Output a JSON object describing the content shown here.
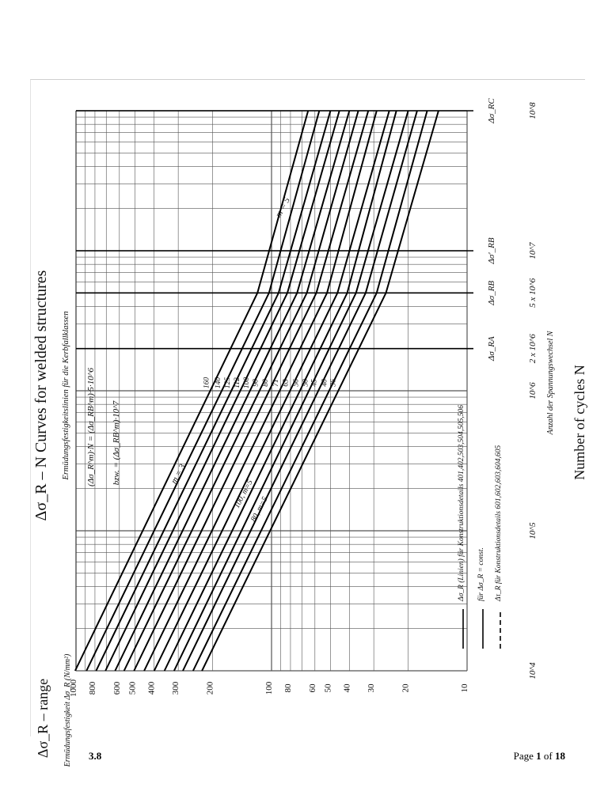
{
  "document": {
    "section": "3.8",
    "page_label": "Page",
    "page_current": "1",
    "page_of": "of",
    "page_total": "18"
  },
  "chart_data": {
    "type": "line",
    "orientation": "rotated 90° clockwise (log-log S-N diagram)",
    "scale": "log-log",
    "grid": true,
    "title": "Δσ_R – N Curves for welded structures",
    "subtitle": "Ermüdungsfestigkeitslinien für die Kerbfallklassen",
    "xlabel": "Number of cycles N",
    "xlabel_de": "Anzahl der Spannungswechsel N",
    "ylabel": "Δσ_R – range",
    "ylabel_de": "Ermüdungsfestigkeit Δσ_R (N/mm²)",
    "xlim": [
      10000,
      100000000
    ],
    "ylim": [
      10,
      1000
    ],
    "x_ticks": [
      {
        "v": 10000,
        "label": "10^4"
      },
      {
        "v": 100000,
        "label": "10^5"
      },
      {
        "v": 1000000,
        "label": "10^6"
      },
      {
        "v": 2000000,
        "label": "2 x 10^6"
      },
      {
        "v": 5000000,
        "label": "5 x 10^6"
      },
      {
        "v": 10000000,
        "label": "10^7"
      },
      {
        "v": 100000000,
        "label": "10^8"
      }
    ],
    "y_ticks": [
      1000,
      800,
      600,
      500,
      400,
      300,
      200,
      100,
      80,
      60,
      50,
      40,
      30,
      20,
      10
    ],
    "reference_points": [
      {
        "v": 2000000,
        "label": "Δσ_RA"
      },
      {
        "v": 5000000,
        "label": "Δσ_RB"
      },
      {
        "v": 10000000,
        "label": "Δσ'_RB"
      },
      {
        "v": 100000000,
        "label": "Δσ_RC"
      }
    ],
    "equations": [
      "(Δσ_R^m)·N = (Δσ_RB^m)·5·10^6",
      "bzw. = (Δσ_RB^m)·10^7"
    ],
    "slope_labels": [
      "m = 3",
      "m = 5",
      "100, m=5",
      "80, m=5"
    ],
    "detail_categories": [
      "160",
      "140",
      "125",
      "112",
      "100",
      "90",
      "80",
      "71",
      "63",
      "56",
      "50",
      "45",
      "40",
      "36"
    ],
    "series": [
      {
        "category": 160,
        "start_sigma_at_1e4": 1010,
        "knee_sigma_5e6": 118,
        "end_sigma_1e8": 65
      },
      {
        "category": 140,
        "start_sigma_at_1e4": 884,
        "knee_sigma_5e6": 103,
        "end_sigma_1e8": 57
      },
      {
        "category": 125,
        "start_sigma_at_1e4": 789,
        "knee_sigma_5e6": 92,
        "end_sigma_1e8": 50
      },
      {
        "category": 112,
        "start_sigma_at_1e4": 707,
        "knee_sigma_5e6": 83,
        "end_sigma_1e8": 45
      },
      {
        "category": 100,
        "start_sigma_at_1e4": 631,
        "knee_sigma_5e6": 74,
        "end_sigma_1e8": 40
      },
      {
        "category": 90,
        "start_sigma_at_1e4": 568,
        "knee_sigma_5e6": 66,
        "end_sigma_1e8": 36
      },
      {
        "category": 80,
        "start_sigma_at_1e4": 505,
        "knee_sigma_5e6": 59,
        "end_sigma_1e8": 32
      },
      {
        "category": 71,
        "start_sigma_at_1e4": 448,
        "knee_sigma_5e6": 52,
        "end_sigma_1e8": 29
      },
      {
        "category": 63,
        "start_sigma_at_1e4": 398,
        "knee_sigma_5e6": 46,
        "end_sigma_1e8": 25
      },
      {
        "category": 56,
        "start_sigma_at_1e4": 353,
        "knee_sigma_5e6": 41,
        "end_sigma_1e8": 23
      },
      {
        "category": 50,
        "start_sigma_at_1e4": 315,
        "knee_sigma_5e6": 37,
        "end_sigma_1e8": 20
      },
      {
        "category": 45,
        "start_sigma_at_1e4": 284,
        "knee_sigma_5e6": 33,
        "end_sigma_1e8": 18
      },
      {
        "category": 40,
        "start_sigma_at_1e4": 252,
        "knee_sigma_5e6": 29,
        "end_sigma_1e8": 16
      },
      {
        "category": 36,
        "start_sigma_at_1e4": 227,
        "knee_sigma_5e6": 26,
        "end_sigma_1e8": 14
      }
    ],
    "legend": [
      {
        "style": "solid",
        "text": "Δσ_R (Linien) für Konstruktionsdetails 401,402,503,504,505,506"
      },
      {
        "style": "solid-thin",
        "text": "für Δσ_R = const."
      },
      {
        "style": "dashed",
        "text": "Δτ_R für Konstruktionsdetails 601,602,603,604,605"
      }
    ]
  }
}
